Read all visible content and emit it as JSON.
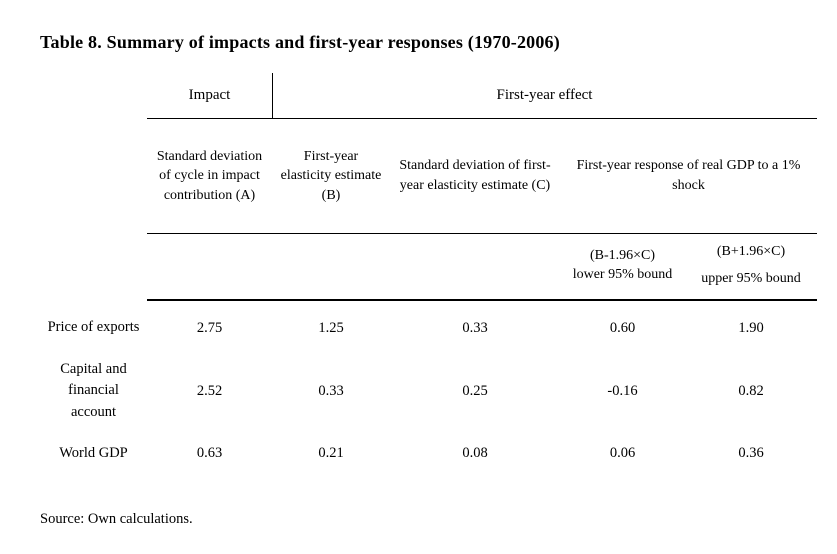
{
  "page": {
    "title": "Table 8. Summary of impacts and first-year responses (1970-2006)",
    "source": "Source: Own calculations."
  },
  "table": {
    "top_header": {
      "impact": "Impact",
      "first_year_effect": "First-year effect"
    },
    "columns": {
      "a": "Standard deviation of cycle in impact contribution (A)",
      "b": "First-year elasticity estimate (B)",
      "c": "Standard deviation of first-year elasticity estimate (C)",
      "response": "First-year response of real GDP to a 1% shock"
    },
    "bounds": {
      "lower_formula": "(B-1.96×C)",
      "lower_label": "lower 95% bound",
      "upper_formula": "(B+1.96×C)",
      "upper_label": "upper 95% bound"
    },
    "rows": [
      {
        "label": "Price of exports",
        "values": [
          "2.75",
          "1.25",
          "0.33",
          "0.60",
          "1.90"
        ]
      },
      {
        "label": "Capital and financial account",
        "values": [
          "2.52",
          "0.33",
          "0.25",
          "-0.16",
          "0.82"
        ]
      },
      {
        "label": "World GDP",
        "values": [
          "0.63",
          "0.21",
          "0.08",
          "0.06",
          "0.36"
        ]
      }
    ]
  }
}
